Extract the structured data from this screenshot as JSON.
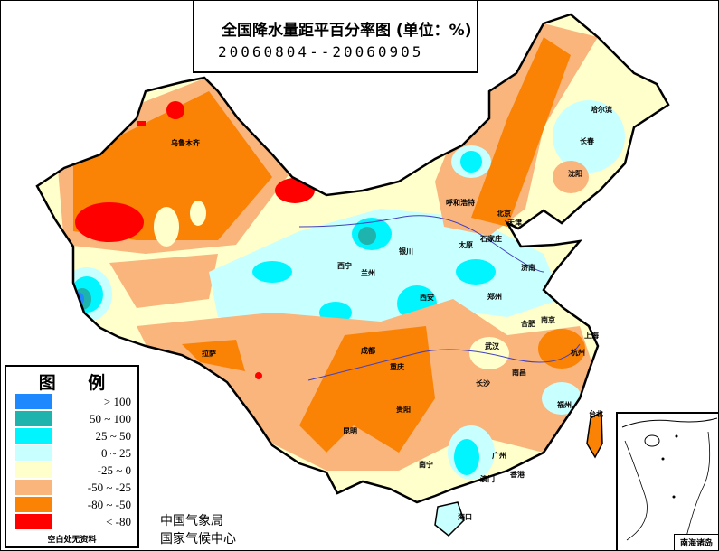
{
  "header": {
    "title": "全国降水量距平百分率图 (单位：%)",
    "date_range": "20060804--20060905"
  },
  "legend": {
    "title_left": "图",
    "title_right": "例",
    "items": [
      {
        "label": "> 100",
        "color": "#1e88ff"
      },
      {
        "label": "50 ~ 100",
        "color": "#1fb3ad"
      },
      {
        "label": "25 ~ 50",
        "color": "#00f5ff"
      },
      {
        "label": "0 ~ 25",
        "color": "#c8ffff"
      },
      {
        "label": "-25 ~ 0",
        "color": "#ffffcc"
      },
      {
        "label": "-50 ~ -25",
        "color": "#f9b57c"
      },
      {
        "label": "-80 ~ -50",
        "color": "#fa8205"
      },
      {
        "label": "< -80",
        "color": "#ff0000"
      }
    ],
    "note": "空白处无资料"
  },
  "org": {
    "line1": "中国气象局",
    "line2": "国家气候中心"
  },
  "inset": {
    "label": "南海诸岛"
  },
  "map": {
    "cities": [
      "乌鲁木齐",
      "哈尔滨",
      "长春",
      "沈阳",
      "呼和浩特",
      "北京",
      "天津",
      "石家庄",
      "太原",
      "银川",
      "西宁",
      "兰州",
      "济南",
      "郑州",
      "西安",
      "合肥",
      "南京",
      "上海",
      "杭州",
      "武汉",
      "成都",
      "拉萨",
      "重庆",
      "长沙",
      "南昌",
      "福州",
      "台北",
      "贵阳",
      "昆明",
      "南宁",
      "广州",
      "澳门",
      "香港",
      "海口"
    ]
  }
}
